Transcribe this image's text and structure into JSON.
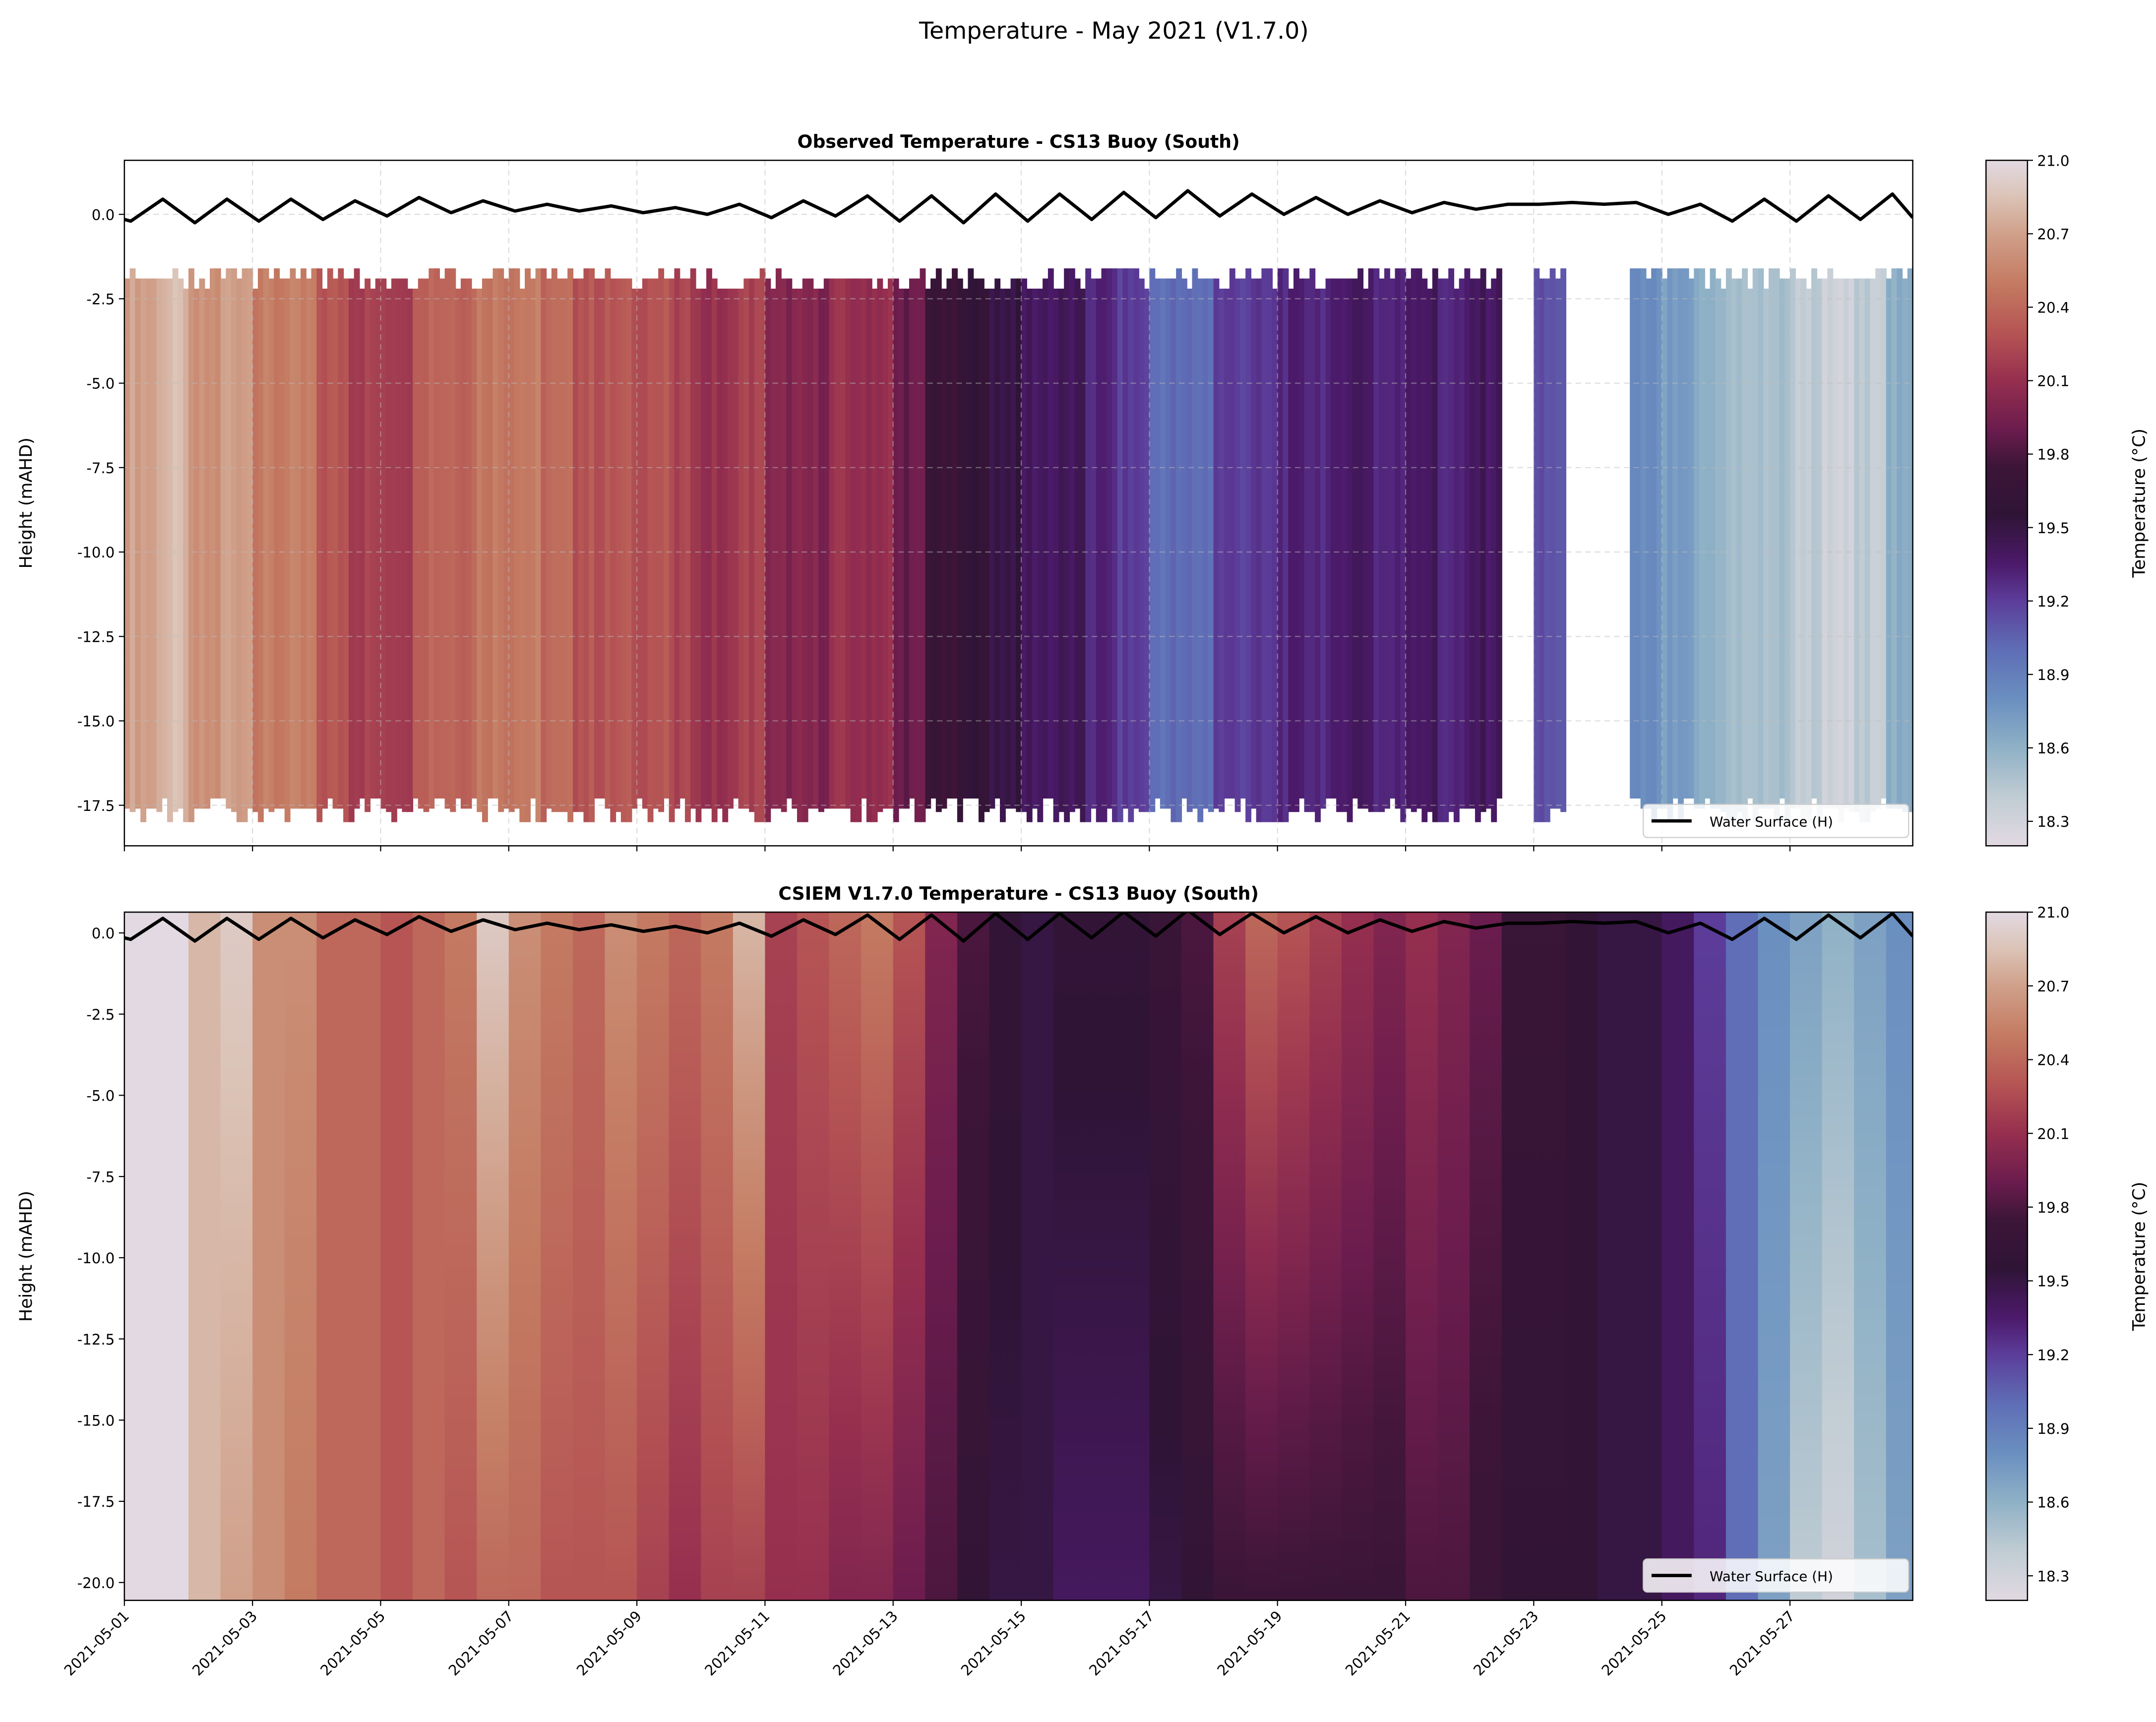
{
  "figure": {
    "suptitle": "Temperature - May 2021 (V1.7.0)"
  },
  "colormap": {
    "name": "twilight_shifted",
    "vmin": 18.2,
    "vmax": 21.0,
    "stops": [
      [
        18.2,
        "#e2d9e2"
      ],
      [
        18.4,
        "#c0ccd3"
      ],
      [
        18.6,
        "#8fb1c6"
      ],
      [
        18.8,
        "#6a8fc0"
      ],
      [
        19.0,
        "#5f6eb6"
      ],
      [
        19.2,
        "#5c3d9a"
      ],
      [
        19.35,
        "#4c1a6b"
      ],
      [
        19.55,
        "#2f1436"
      ],
      [
        19.75,
        "#3c1538"
      ],
      [
        19.9,
        "#6b1c4e"
      ],
      [
        20.1,
        "#962f4f"
      ],
      [
        20.3,
        "#b65554"
      ],
      [
        20.5,
        "#c47b62"
      ],
      [
        20.7,
        "#d0a08a"
      ],
      [
        20.85,
        "#dbc3b6"
      ],
      [
        21.0,
        "#e2d9e2"
      ]
    ]
  },
  "chart_data": [
    {
      "type": "heatmap",
      "title": "Observed Temperature - CS13 Buoy (South)",
      "ylabel": "Height (mAHD)",
      "colorbar_label": "Temperature (°C)",
      "colorbar_ticks": [
        "18.3",
        "18.6",
        "18.9",
        "19.2",
        "19.5",
        "19.8",
        "20.1",
        "20.4",
        "20.7",
        "21.0"
      ],
      "yticks": [
        "0.0",
        "-2.5",
        "-5.0",
        "-7.5",
        "-10.0",
        "-12.5",
        "-15.0",
        "-17.5"
      ],
      "ylim": [
        -18.7,
        1.6
      ],
      "xlim": [
        "2021-05-01T00:00",
        "2021-05-28T22:00"
      ],
      "grid": true,
      "legend": {
        "label": "Water Surface (H)",
        "placement": "lower-right"
      },
      "depth_range": [
        -1.9,
        -17.6
      ],
      "time_step_hours": 12,
      "temperature": [
        20.7,
        20.8,
        20.6,
        20.7,
        20.5,
        20.5,
        20.3,
        20.2,
        20.2,
        20.4,
        20.4,
        20.5,
        20.5,
        20.4,
        20.3,
        20.3,
        20.3,
        20.2,
        20.1,
        20.2,
        20.0,
        20.0,
        20.1,
        20.1,
        19.9,
        19.7,
        19.6,
        19.5,
        19.4,
        19.4,
        19.3,
        19.2,
        19.0,
        19.0,
        19.2,
        19.2,
        19.3,
        19.3,
        19.4,
        19.3,
        19.4,
        19.3,
        19.4,
        null,
        19.1,
        null,
        null,
        18.8,
        18.7,
        18.6,
        18.5,
        18.5,
        18.4,
        18.3,
        18.4,
        18.6,
        19.0
      ]
    },
    {
      "type": "heatmap",
      "title": "CSIEM V1.7.0 Temperature - CS13 Buoy (South)",
      "ylabel": "Height (mAHD)",
      "colorbar_label": "Temperature (°C)",
      "colorbar_ticks": [
        "18.3",
        "18.6",
        "18.9",
        "19.2",
        "19.5",
        "19.8",
        "20.1",
        "20.4",
        "20.7",
        "21.0"
      ],
      "yticks": [
        "0.0",
        "-2.5",
        "-5.0",
        "-7.5",
        "-10.0",
        "-12.5",
        "-15.0",
        "-17.5",
        "-20.0"
      ],
      "ylim": [
        -20.55,
        0.64
      ],
      "xlim": [
        "2021-05-01T00:00",
        "2021-05-28T22:00"
      ],
      "xticks": [
        "2021-05-01",
        "2021-05-03",
        "2021-05-05",
        "2021-05-07",
        "2021-05-09",
        "2021-05-11",
        "2021-05-13",
        "2021-05-15",
        "2021-05-17",
        "2021-05-19",
        "2021-05-21",
        "2021-05-23",
        "2021-05-25",
        "2021-05-27"
      ],
      "grid": false,
      "legend": {
        "label": "Water Surface (H)",
        "placement": "lower-right"
      },
      "time_step_hours": 12,
      "surface_temperature": [
        21.0,
        21.0,
        20.8,
        20.9,
        20.6,
        20.6,
        20.4,
        20.4,
        20.3,
        20.4,
        20.5,
        20.9,
        20.6,
        20.5,
        20.4,
        20.6,
        20.5,
        20.4,
        20.5,
        20.8,
        20.2,
        20.3,
        20.4,
        20.5,
        20.3,
        20.0,
        19.8,
        19.6,
        19.5,
        19.6,
        19.6,
        19.6,
        19.7,
        19.8,
        20.2,
        20.4,
        20.3,
        20.2,
        20.1,
        20.0,
        20.1,
        20.0,
        19.9,
        19.7,
        19.7,
        19.6,
        19.5,
        19.5,
        19.4,
        19.2,
        19.0,
        18.8,
        18.7,
        18.6,
        18.7,
        18.8,
        18.9
      ],
      "bottom_temperature": [
        21.0,
        21.0,
        20.8,
        20.7,
        20.6,
        20.5,
        20.4,
        20.4,
        20.3,
        20.4,
        20.3,
        20.4,
        20.4,
        20.3,
        20.3,
        20.3,
        20.2,
        20.1,
        20.2,
        20.2,
        20.1,
        20.1,
        20.0,
        20.0,
        19.9,
        19.8,
        19.6,
        19.5,
        19.5,
        19.4,
        19.4,
        19.4,
        19.5,
        19.6,
        19.7,
        19.7,
        19.7,
        19.7,
        19.7,
        19.7,
        19.8,
        19.8,
        19.7,
        19.6,
        19.6,
        19.6,
        19.5,
        19.5,
        19.4,
        19.3,
        19.0,
        18.7,
        18.4,
        18.3,
        18.5,
        18.7,
        18.8
      ]
    }
  ],
  "water_surface": {
    "label": "Water Surface (H)",
    "t": [
      "2021-05-01T00:00",
      "2021-05-01T02:24",
      "2021-05-01T14:24",
      "2021-05-02T02:24",
      "2021-05-02T14:24",
      "2021-05-03T02:24",
      "2021-05-03T14:24",
      "2021-05-04T02:24",
      "2021-05-04T14:24",
      "2021-05-05T02:24",
      "2021-05-05T14:24",
      "2021-05-06T02:24",
      "2021-05-06T14:24",
      "2021-05-07T02:24",
      "2021-05-07T14:24",
      "2021-05-08T02:24",
      "2021-05-08T14:24",
      "2021-05-09T02:24",
      "2021-05-09T14:24",
      "2021-05-10T02:24",
      "2021-05-10T14:24",
      "2021-05-11T02:24",
      "2021-05-11T14:24",
      "2021-05-12T02:24",
      "2021-05-12T14:24",
      "2021-05-13T02:24",
      "2021-05-13T14:24",
      "2021-05-14T02:24",
      "2021-05-14T14:24",
      "2021-05-15T02:24",
      "2021-05-15T14:24",
      "2021-05-16T02:24",
      "2021-05-16T14:24",
      "2021-05-17T02:24",
      "2021-05-17T14:24",
      "2021-05-18T02:24",
      "2021-05-18T14:24",
      "2021-05-19T02:24",
      "2021-05-19T14:24",
      "2021-05-20T02:24",
      "2021-05-20T14:24",
      "2021-05-21T02:24",
      "2021-05-21T14:24",
      "2021-05-22T02:24",
      "2021-05-22T14:24",
      "2021-05-23T02:24",
      "2021-05-23T14:24",
      "2021-05-24T02:24",
      "2021-05-24T14:24",
      "2021-05-25T02:24",
      "2021-05-25T14:24",
      "2021-05-26T02:24",
      "2021-05-26T14:24",
      "2021-05-27T02:24",
      "2021-05-27T14:24",
      "2021-05-28T02:24",
      "2021-05-28T14:24",
      "2021-05-28T22:00"
    ],
    "h": [
      -0.15,
      -0.2,
      0.45,
      -0.25,
      0.45,
      -0.2,
      0.45,
      -0.15,
      0.4,
      -0.05,
      0.5,
      0.05,
      0.4,
      0.1,
      0.3,
      0.1,
      0.25,
      0.05,
      0.2,
      0.0,
      0.3,
      -0.1,
      0.4,
      -0.05,
      0.55,
      -0.2,
      0.55,
      -0.25,
      0.6,
      -0.2,
      0.6,
      -0.15,
      0.65,
      -0.1,
      0.7,
      -0.05,
      0.6,
      0.0,
      0.5,
      0.0,
      0.4,
      0.05,
      0.35,
      0.15,
      0.3,
      0.3,
      0.35,
      0.3,
      0.35,
      0.0,
      0.3,
      -0.2,
      0.45,
      -0.2,
      0.55,
      -0.15,
      0.6,
      -0.1
    ]
  }
}
